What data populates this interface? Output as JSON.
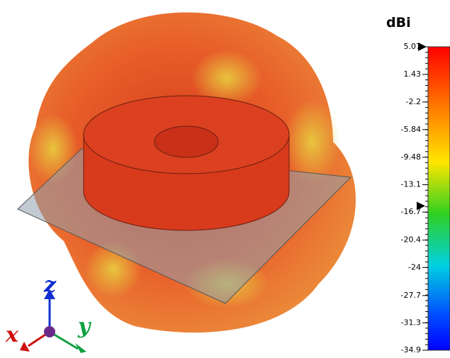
{
  "colorbar": {
    "unit": "dBi",
    "lim": [
      -34.9,
      5.07
    ],
    "ticks": [
      5.07,
      1.43,
      -2.2,
      -5.84,
      -9.48,
      -13.1,
      -16.7,
      -20.4,
      -24,
      -27.7,
      -31.3,
      -34.9
    ],
    "marker": -15.9
  },
  "axes": {
    "x": "x",
    "y": "y",
    "z": "z"
  }
}
